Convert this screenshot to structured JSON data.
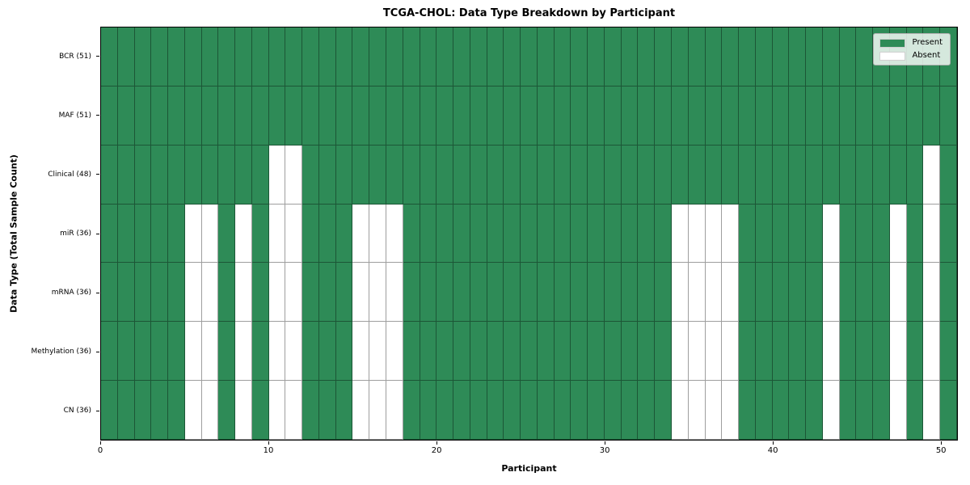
{
  "chart_data": {
    "type": "heatmap",
    "title": "TCGA-CHOL: Data Type Breakdown by Participant",
    "xlabel": "Participant",
    "ylabel": "Data Type (Total Sample Count)",
    "n_participants": 51,
    "xlim": [
      0,
      51
    ],
    "x_ticks": [
      "0",
      "10",
      "20",
      "30",
      "40",
      "50"
    ],
    "x_tick_values": [
      0,
      10,
      20,
      30,
      40,
      50
    ],
    "grid": "cell-borders",
    "legend_position": "upper-right",
    "legend": [
      {
        "label": "Present",
        "color": "#2e8b57"
      },
      {
        "label": "Absent",
        "color": "#ffffff"
      }
    ],
    "colors": {
      "present": "#2e8b57",
      "absent": "#ffffff",
      "cell_edge": "rgba(0,0,0,0.38)"
    },
    "rows": [
      {
        "label": "BCR (51)",
        "present_count": 51,
        "absent_participants": []
      },
      {
        "label": "MAF (51)",
        "present_count": 51,
        "absent_participants": []
      },
      {
        "label": "Clinical (48)",
        "present_count": 48,
        "absent_participants": [
          10,
          11,
          49
        ]
      },
      {
        "label": "miR (36)",
        "present_count": 36,
        "absent_participants": [
          5,
          6,
          8,
          10,
          11,
          15,
          16,
          17,
          34,
          35,
          36,
          37,
          43,
          47,
          49
        ]
      },
      {
        "label": "mRNA (36)",
        "present_count": 36,
        "absent_participants": [
          5,
          6,
          8,
          10,
          11,
          15,
          16,
          17,
          34,
          35,
          36,
          37,
          43,
          47,
          49
        ]
      },
      {
        "label": "Methylation (36)",
        "present_count": 36,
        "absent_participants": [
          5,
          6,
          8,
          10,
          11,
          15,
          16,
          17,
          34,
          35,
          36,
          37,
          43,
          47,
          49
        ]
      },
      {
        "label": "CN (36)",
        "present_count": 36,
        "absent_participants": [
          5,
          6,
          8,
          10,
          11,
          15,
          16,
          17,
          34,
          35,
          36,
          37,
          43,
          47,
          49
        ]
      }
    ]
  }
}
